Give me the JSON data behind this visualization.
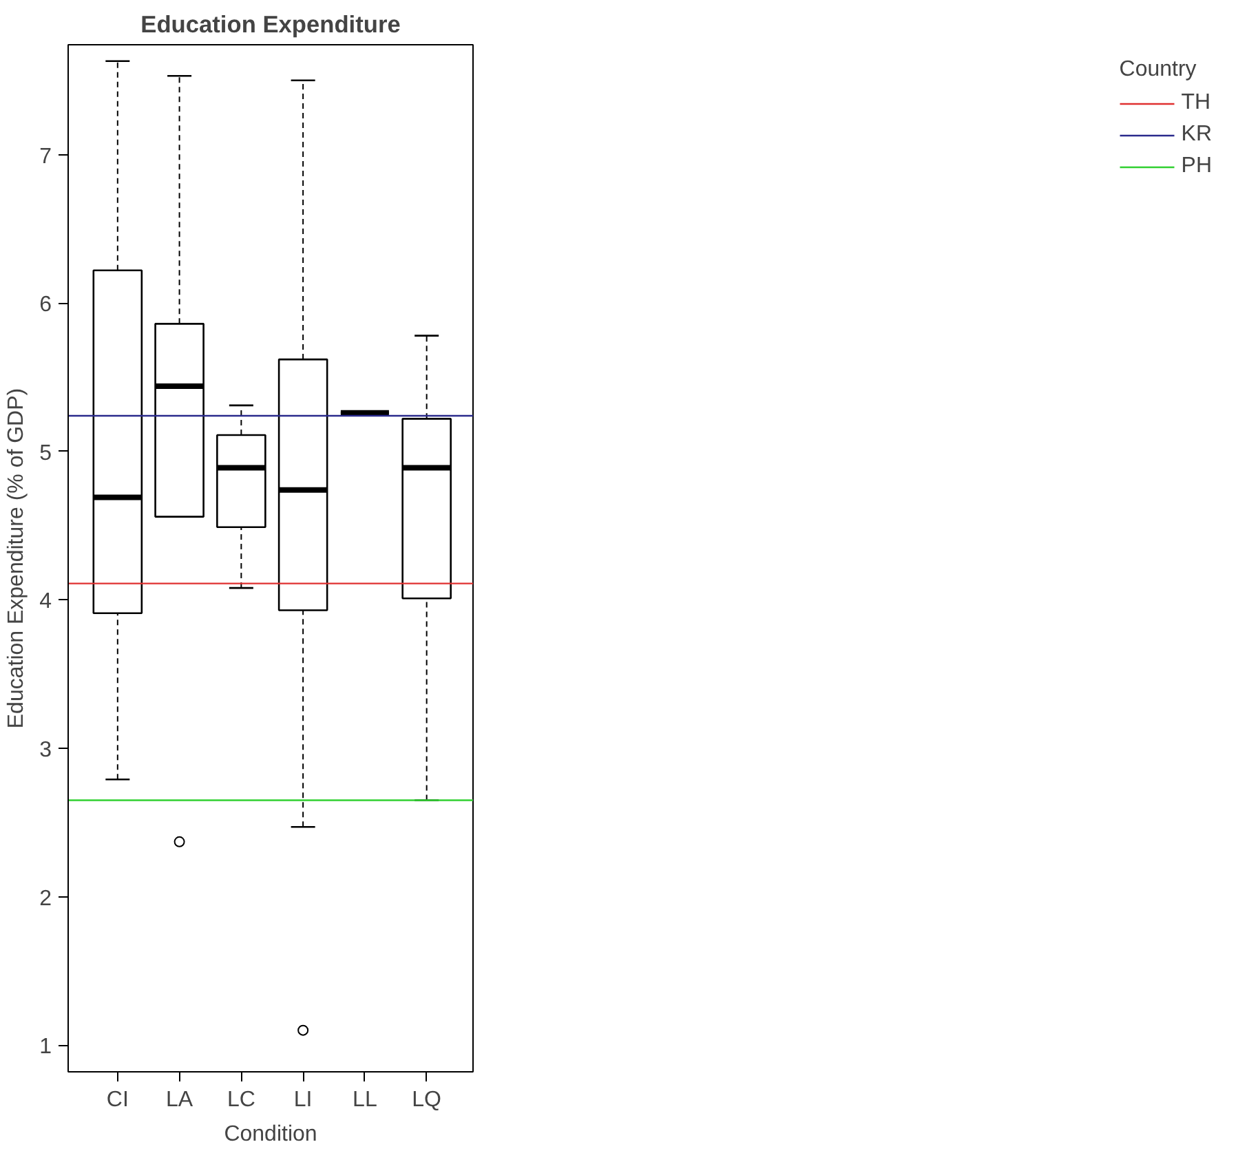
{
  "chart_data": {
    "type": "box",
    "title": "Education Expenditure",
    "xlabel": "Condition",
    "ylabel": "Education Expenditure (% of GDP)",
    "legend_title": "Country",
    "categories": [
      "CI",
      "LA",
      "LC",
      "LI",
      "LL",
      "LQ"
    ],
    "boxes": [
      {
        "low": 2.79,
        "q1": 3.91,
        "median": 4.69,
        "q3": 6.22,
        "high": 7.63
      },
      {
        "low": 4.56,
        "q1": 4.56,
        "median": 5.44,
        "q3": 5.86,
        "high": 7.53,
        "outliers": [
          2.37
        ]
      },
      {
        "low": 4.08,
        "q1": 4.49,
        "median": 4.89,
        "q3": 5.11,
        "high": 5.31
      },
      {
        "low": 2.47,
        "q1": 3.93,
        "median": 4.74,
        "q3": 5.62,
        "high": 7.5,
        "outliers": [
          1.1
        ]
      },
      {
        "low": 5.26,
        "q1": 5.26,
        "median": 5.26,
        "q3": 5.26,
        "high": 5.26
      },
      {
        "low": 2.65,
        "q1": 4.01,
        "median": 4.89,
        "q3": 5.22,
        "high": 5.78
      }
    ],
    "ref_lines": [
      {
        "axis": "y",
        "value": 4.11,
        "label": "TH",
        "color": "#e03030"
      },
      {
        "axis": "y",
        "value": 5.24,
        "label": "KR",
        "color": "#2a2a8c"
      },
      {
        "axis": "y",
        "value": 2.65,
        "label": "PH",
        "color": "#30d030"
      }
    ],
    "ylim": [
      0.82,
      7.74
    ],
    "yticks": [
      1,
      2,
      3,
      4,
      5,
      6,
      7
    ],
    "grid": false,
    "legend": "right"
  }
}
